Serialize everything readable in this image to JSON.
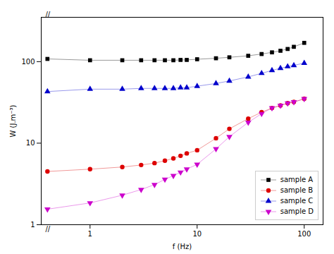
{
  "chart_data": {
    "type": "line",
    "xlabel": "f (Hz)",
    "ylabel": "W (J.m⁻³)",
    "x": [
      0.4,
      1,
      2,
      3,
      4,
      5,
      6,
      7,
      8,
      10,
      15,
      20,
      30,
      40,
      50,
      60,
      70,
      80,
      100
    ],
    "series": [
      {
        "name": "sample A",
        "color": "#000000",
        "marker": "square",
        "values": [
          108,
          104,
          104,
          104,
          104,
          104,
          104,
          105,
          105,
          107,
          110,
          113,
          118,
          124,
          130,
          136,
          143,
          152,
          170
        ]
      },
      {
        "name": "sample B",
        "color": "#dd0000",
        "marker": "circle",
        "values": [
          4.5,
          4.8,
          5.1,
          5.4,
          5.7,
          6.1,
          6.5,
          7.0,
          7.5,
          8.2,
          11.5,
          15,
          20,
          24,
          27,
          29,
          31,
          32,
          35
        ]
      },
      {
        "name": "sample C",
        "color": "#0000cc",
        "marker": "triangle-up",
        "values": [
          43,
          46,
          46,
          47,
          47,
          47,
          47,
          48,
          48,
          50,
          54,
          58,
          65,
          72,
          78,
          83,
          87,
          90,
          96
        ]
      },
      {
        "name": "sample D",
        "color": "#cc00cc",
        "marker": "triangle-down",
        "values": [
          1.55,
          1.85,
          2.3,
          2.7,
          3.1,
          3.6,
          4.0,
          4.4,
          4.8,
          5.5,
          8.5,
          12,
          18,
          23,
          27,
          29,
          31,
          32,
          35
        ]
      }
    ],
    "xlim": [
      0.35,
      150
    ],
    "ylim": [
      1.0,
      350
    ],
    "xticks": [
      1,
      10,
      100
    ],
    "yticks": [
      1,
      10,
      100
    ],
    "log": true,
    "grid": false,
    "line_style": "solid",
    "legend": "lower right",
    "annotations": [
      "//",
      "//"
    ]
  }
}
